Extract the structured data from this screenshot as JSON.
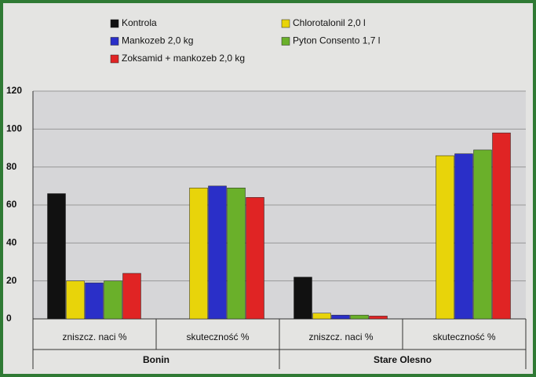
{
  "chart_data": {
    "type": "bar",
    "categories": [
      "zniszcz. naci %",
      "skuteczność %",
      "zniszcz. naci %",
      "skuteczność %"
    ],
    "groups": [
      "Bonin",
      "Stare Olesno"
    ],
    "series": [
      {
        "name": "Kontrola",
        "color": "#111111",
        "values": [
          66,
          null,
          22,
          null
        ]
      },
      {
        "name": "Chlorotalonil 2,0 l",
        "color": "#e8d40a",
        "values": [
          20,
          69,
          3,
          86
        ]
      },
      {
        "name": "Mankozeb 2,0 kg",
        "color": "#2a2fc8",
        "values": [
          19,
          70,
          2,
          87
        ]
      },
      {
        "name": "Pyton Consento 1,7 l",
        "color": "#6ab02a",
        "values": [
          20,
          69,
          2,
          89
        ]
      },
      {
        "name": "Zoksamid + mankozeb 2,0 kg",
        "color": "#e02424",
        "values": [
          24,
          64,
          1.5,
          98
        ]
      }
    ],
    "ylim": [
      0,
      120
    ],
    "yticks": [
      0,
      20,
      40,
      60,
      80,
      100,
      120
    ],
    "grid": true
  }
}
